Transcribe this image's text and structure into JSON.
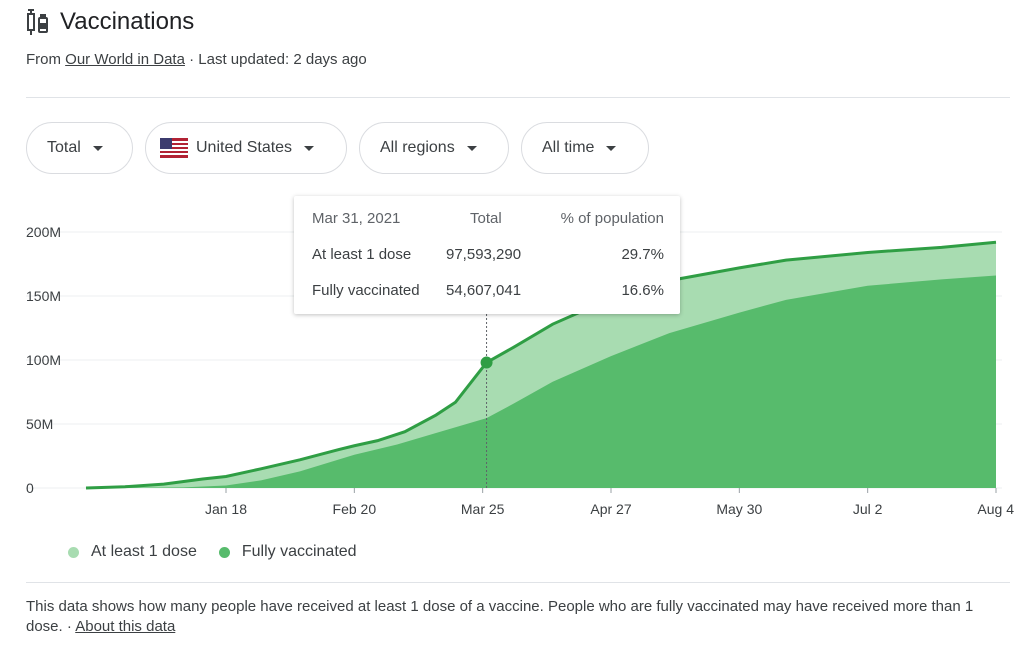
{
  "header": {
    "title": "Vaccinations",
    "icon": "vaccine-syringe-icon",
    "source_prefix": "From",
    "source_link": "Our World in Data",
    "updated": "· Last updated: 2 days ago"
  },
  "filters": [
    {
      "label": "Total"
    },
    {
      "label": "United States",
      "icon": "us-flag-icon"
    },
    {
      "label": "All regions"
    },
    {
      "label": "All time"
    }
  ],
  "tooltip": {
    "date": "Mar 31, 2021",
    "col_total": "Total",
    "col_pct": "% of population",
    "rows": [
      {
        "label": "At least 1 dose",
        "total": "97,593,290",
        "pct": "29.7%"
      },
      {
        "label": "Fully vaccinated",
        "total": "54,607,041",
        "pct": "16.6%"
      }
    ]
  },
  "legend": {
    "at_least_one": "At least 1 dose",
    "fully": "Fully vaccinated"
  },
  "footer": {
    "text": "This data shows how many people have received at least 1 dose of a vaccine. People who are fully vaccinated may have received more than 1 dose.",
    "separator": "·",
    "link": "About this data"
  },
  "colors": {
    "at_least_one_fill": "#a8dcb1",
    "fully_fill": "#57bb6c",
    "line": "#2f9e44"
  },
  "chart_data": {
    "type": "area",
    "y_ticks": [
      "0",
      "50M",
      "100M",
      "150M",
      "200M"
    ],
    "y_tick_values": [
      0,
      50,
      100,
      150,
      200
    ],
    "x_ticks": [
      "Jan 18",
      "Feb 20",
      "Mar 25",
      "Apr 27",
      "May 30",
      "Jul 2",
      "Aug 4"
    ],
    "x_tick_values": [
      36,
      69,
      102,
      135,
      168,
      201,
      234
    ],
    "ylim": [
      0,
      200
    ],
    "xlim": [
      0,
      234
    ],
    "y_unit": "millions",
    "x_unit": "days",
    "highlight_x": 103,
    "series": [
      {
        "name": "At least 1 dose",
        "key": "at_least_one",
        "x": [
          0,
          10,
          20,
          30,
          36,
          45,
          55,
          65,
          69,
          75,
          82,
          90,
          95,
          103,
          110,
          120,
          135,
          150,
          168,
          180,
          201,
          220,
          234
        ],
        "values": [
          0,
          1,
          3,
          7,
          9,
          15,
          22,
          30,
          33,
          37,
          44,
          57,
          67,
          98,
          110,
          128,
          148,
          162,
          172,
          178,
          184,
          188,
          192
        ]
      },
      {
        "name": "Fully vaccinated",
        "key": "fully",
        "x": [
          0,
          25,
          36,
          45,
          55,
          69,
          80,
          90,
          103,
          110,
          120,
          135,
          150,
          168,
          180,
          201,
          220,
          234
        ],
        "values": [
          0,
          0.5,
          2,
          6,
          13,
          26,
          34,
          43,
          54.6,
          66,
          83,
          103,
          121,
          137,
          147,
          158,
          163,
          166
        ]
      }
    ]
  }
}
